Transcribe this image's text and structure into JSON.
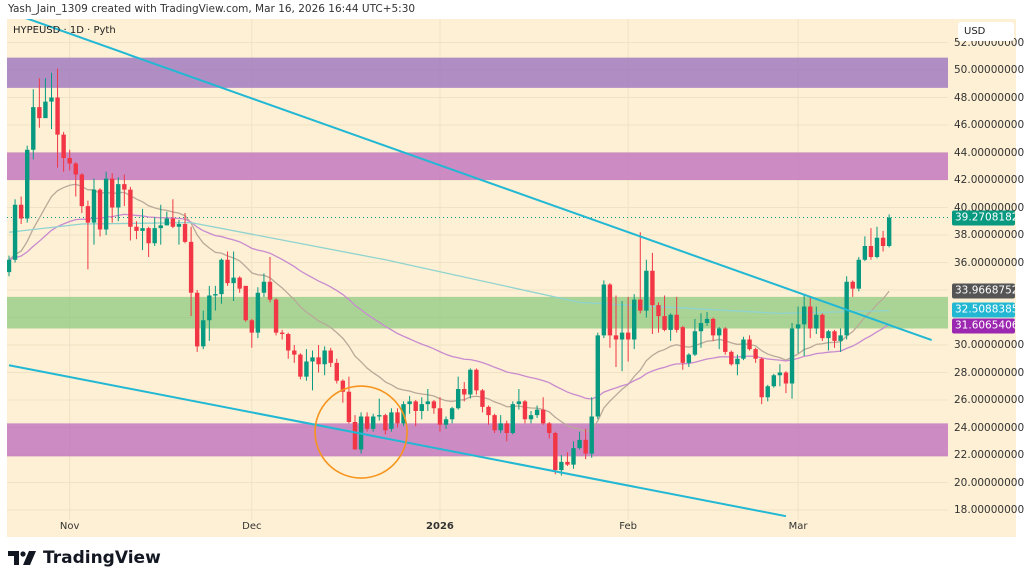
{
  "header": {
    "attribution": "Yash_Jain_1309 created with TradingView.com, Mar 16, 2026 16:44 UTC+5:30"
  },
  "symbol_label": "HYPEUSD · 1D · Pyth",
  "currency": "USD",
  "brand": "TradingView",
  "colors": {
    "background": "#fdf0d4",
    "up": "#089981",
    "down": "#f23645",
    "trendline": "#22b8d4",
    "circle": "#f7941d"
  },
  "chart_data": {
    "type": "candlestick",
    "symbol": "HYPEUSD",
    "interval": "1D",
    "date_range": [
      "2025-10-22",
      "2026-03-16"
    ],
    "ylim": [
      17,
      52.5
    ],
    "y_ticks": [
      "52.00000000",
      "50.00000000",
      "48.00000000",
      "46.00000000",
      "44.00000000",
      "42.00000000",
      "40.00000000",
      "38.00000000",
      "36.00000000",
      "30.00000000",
      "28.00000000",
      "26.00000000",
      "24.00000000",
      "22.00000000",
      "20.00000000",
      "18.00000000"
    ],
    "y_tick_values": [
      52,
      50,
      48,
      46,
      44,
      42,
      40,
      38,
      36,
      30,
      28,
      26,
      24,
      22,
      20,
      18
    ],
    "x_ticks": [
      {
        "label": "Nov",
        "date": "2025-11-01"
      },
      {
        "label": "Dec",
        "date": "2025-12-01"
      },
      {
        "label": "2026",
        "date": "2026-01-01",
        "bold": true
      },
      {
        "label": "Feb",
        "date": "2026-02-01"
      },
      {
        "label": "Mar",
        "date": "2026-03-01"
      }
    ],
    "grid": true,
    "ohlc": [
      [
        35.3,
        36.5,
        35.0,
        36.2
      ],
      [
        36.2,
        40.6,
        36.0,
        40.2
      ],
      [
        40.2,
        40.8,
        38.8,
        39.2
      ],
      [
        39.2,
        44.5,
        38.9,
        44.2
      ],
      [
        44.2,
        48.6,
        43.5,
        47.3
      ],
      [
        47.3,
        49.4,
        45.8,
        46.5
      ],
      [
        46.5,
        49.4,
        46.5,
        47.7
      ],
      [
        47.7,
        49.8,
        45.7,
        48.0
      ],
      [
        48.0,
        50.1,
        42.9,
        45.3
      ],
      [
        45.3,
        45.5,
        42.6,
        43.6
      ],
      [
        43.6,
        44.2,
        42.7,
        43.2
      ],
      [
        43.2,
        43.3,
        40.8,
        42.4
      ],
      [
        42.4,
        42.5,
        39.6,
        40.1
      ],
      [
        40.1,
        40.5,
        35.5,
        38.9
      ],
      [
        38.9,
        42.1,
        37.3,
        41.3
      ],
      [
        41.3,
        41.4,
        37.9,
        38.4
      ],
      [
        38.4,
        42.6,
        38.0,
        42.1
      ],
      [
        42.1,
        42.5,
        38.9,
        40.0
      ],
      [
        40.0,
        42.2,
        39.0,
        41.7
      ],
      [
        41.7,
        42.4,
        40.1,
        41.3
      ],
      [
        41.3,
        41.5,
        37.6,
        38.6
      ],
      [
        38.6,
        39.0,
        37.7,
        38.3
      ],
      [
        38.3,
        39.9,
        36.9,
        38.5
      ],
      [
        38.5,
        38.6,
        36.4,
        37.4
      ],
      [
        37.4,
        39.3,
        37.2,
        38.5
      ],
      [
        38.5,
        40.2,
        37.3,
        38.7
      ],
      [
        38.7,
        39.7,
        38.7,
        39.2
      ],
      [
        39.2,
        40.6,
        38.5,
        38.6
      ],
      [
        38.6,
        39.1,
        37.3,
        38.8
      ],
      [
        38.8,
        39.6,
        37.4,
        37.5
      ],
      [
        37.5,
        38.6,
        32.1,
        33.8
      ],
      [
        33.8,
        34.0,
        29.5,
        29.9
      ],
      [
        29.9,
        32.5,
        29.7,
        31.8
      ],
      [
        31.8,
        34.3,
        30.3,
        33.6
      ],
      [
        33.6,
        34.3,
        32.5,
        33.7
      ],
      [
        33.7,
        36.3,
        33.0,
        36.2
      ],
      [
        36.2,
        36.8,
        34.3,
        34.5
      ],
      [
        34.5,
        36.8,
        33.2,
        34.9
      ],
      [
        34.9,
        35.0,
        33.8,
        34.1
      ],
      [
        34.3,
        34.3,
        31.7,
        31.8
      ],
      [
        31.8,
        31.9,
        29.8,
        30.9
      ],
      [
        30.9,
        34.2,
        30.5,
        33.8
      ],
      [
        33.8,
        35.2,
        33.5,
        34.6
      ],
      [
        34.6,
        36.4,
        33.1,
        33.3
      ],
      [
        33.3,
        33.4,
        30.7,
        30.9
      ],
      [
        30.9,
        31.1,
        30.4,
        30.8
      ],
      [
        30.8,
        30.9,
        29.0,
        29.6
      ],
      [
        29.6,
        30.0,
        28.7,
        29.3
      ],
      [
        29.3,
        29.4,
        27.5,
        27.7
      ],
      [
        27.7,
        29.7,
        27.4,
        28.8
      ],
      [
        28.8,
        29.6,
        26.7,
        29.1
      ],
      [
        29.1,
        30.0,
        28.0,
        28.6
      ],
      [
        28.6,
        29.9,
        27.8,
        29.6
      ],
      [
        29.6,
        29.8,
        28.4,
        28.7
      ],
      [
        28.7,
        29.0,
        27.2,
        27.4
      ],
      [
        27.4,
        27.5,
        25.8,
        26.6
      ],
      [
        26.6,
        27.7,
        24.3,
        24.4
      ],
      [
        24.4,
        24.9,
        22.4,
        22.4
      ],
      [
        22.4,
        25.1,
        22.1,
        24.8
      ],
      [
        24.8,
        25.1,
        23.7,
        23.9
      ],
      [
        23.9,
        25.0,
        23.7,
        24.8
      ],
      [
        24.8,
        26.1,
        24.5,
        24.9
      ],
      [
        24.9,
        25.0,
        23.5,
        23.8
      ],
      [
        23.9,
        25.4,
        23.7,
        25.1
      ],
      [
        25.1,
        25.4,
        24.0,
        24.3
      ],
      [
        24.3,
        25.9,
        24.1,
        25.7
      ],
      [
        25.7,
        26.3,
        25.0,
        25.9
      ],
      [
        25.9,
        26.0,
        24.1,
        25.2
      ],
      [
        25.2,
        26.2,
        24.6,
        25.7
      ],
      [
        25.7,
        26.8,
        25.2,
        25.9
      ],
      [
        25.9,
        26.0,
        25.0,
        25.4
      ],
      [
        25.4,
        26.2,
        23.7,
        24.2
      ],
      [
        24.2,
        24.8,
        23.9,
        24.6
      ],
      [
        24.6,
        25.5,
        24.3,
        25.4
      ],
      [
        25.4,
        27.7,
        25.3,
        26.8
      ],
      [
        26.8,
        27.3,
        25.9,
        26.4
      ],
      [
        26.4,
        28.3,
        26.1,
        28.2
      ],
      [
        28.2,
        28.3,
        26.4,
        26.7
      ],
      [
        26.7,
        26.8,
        25.1,
        25.5
      ],
      [
        25.5,
        25.6,
        24.2,
        24.9
      ],
      [
        24.9,
        25.0,
        23.6,
        23.8
      ],
      [
        23.8,
        24.9,
        23.6,
        24.3
      ],
      [
        24.3,
        24.5,
        23.0,
        23.6
      ],
      [
        23.6,
        25.9,
        23.5,
        25.7
      ],
      [
        25.7,
        26.8,
        25.3,
        25.9
      ],
      [
        25.9,
        26.0,
        24.3,
        24.6
      ],
      [
        24.6,
        25.2,
        24.3,
        24.9
      ],
      [
        24.9,
        25.6,
        24.7,
        25.3
      ],
      [
        25.3,
        26.2,
        24.2,
        24.3
      ],
      [
        24.3,
        24.4,
        23.2,
        23.6
      ],
      [
        23.6,
        23.7,
        20.6,
        20.9
      ],
      [
        20.9,
        22.0,
        20.5,
        21.5
      ],
      [
        21.5,
        22.2,
        21.2,
        21.3
      ],
      [
        21.3,
        23.0,
        21.0,
        22.5
      ],
      [
        22.5,
        23.7,
        22.4,
        23.1
      ],
      [
        23.1,
        23.9,
        21.7,
        22.1
      ],
      [
        22.1,
        26.2,
        21.8,
        24.8
      ],
      [
        24.8,
        30.9,
        24.6,
        30.7
      ],
      [
        30.7,
        34.7,
        30.5,
        34.4
      ],
      [
        34.4,
        34.5,
        29.8,
        30.7
      ],
      [
        30.7,
        33.6,
        28.4,
        30.4
      ],
      [
        30.4,
        33.2,
        28.1,
        30.9
      ],
      [
        30.9,
        33.5,
        28.8,
        30.4
      ],
      [
        30.4,
        33.7,
        29.7,
        33.3
      ],
      [
        33.3,
        38.2,
        32.3,
        32.5
      ],
      [
        32.5,
        36.2,
        32.0,
        35.4
      ],
      [
        35.4,
        36.7,
        30.8,
        32.9
      ],
      [
        32.9,
        33.1,
        30.9,
        32.1
      ],
      [
        32.1,
        33.6,
        31.0,
        31.1
      ],
      [
        31.1,
        32.3,
        30.3,
        32.2
      ],
      [
        32.2,
        33.5,
        30.9,
        31.1
      ],
      [
        31.3,
        31.4,
        28.2,
        28.7
      ],
      [
        28.7,
        29.4,
        28.4,
        29.3
      ],
      [
        29.3,
        31.9,
        29.2,
        31.0
      ],
      [
        31.0,
        32.3,
        29.8,
        31.6
      ],
      [
        31.6,
        32.4,
        31.4,
        31.9
      ],
      [
        31.9,
        32.0,
        30.3,
        30.7
      ],
      [
        30.7,
        31.3,
        29.7,
        31.2
      ],
      [
        31.2,
        31.3,
        29.3,
        29.5
      ],
      [
        29.5,
        29.6,
        28.5,
        28.6
      ],
      [
        28.6,
        29.3,
        27.8,
        29.0
      ],
      [
        29.0,
        30.6,
        28.9,
        30.4
      ],
      [
        30.4,
        30.7,
        29.6,
        29.7
      ],
      [
        29.7,
        29.8,
        28.7,
        29.0
      ],
      [
        29.0,
        29.1,
        25.7,
        26.2
      ],
      [
        26.2,
        27.1,
        25.9,
        27.0
      ],
      [
        27.0,
        27.9,
        26.9,
        27.8
      ],
      [
        27.8,
        28.6,
        27.0,
        28.0
      ],
      [
        28.0,
        28.1,
        26.5,
        27.2
      ],
      [
        27.2,
        31.6,
        26.1,
        31.2
      ],
      [
        31.2,
        32.8,
        29.4,
        31.5
      ],
      [
        31.5,
        33.7,
        29.2,
        32.8
      ],
      [
        32.8,
        33.5,
        30.5,
        31.2
      ],
      [
        31.2,
        32.8,
        30.8,
        32.2
      ],
      [
        32.2,
        32.3,
        30.3,
        30.5
      ],
      [
        30.5,
        31.1,
        29.6,
        31.0
      ],
      [
        31.0,
        31.1,
        29.8,
        30.3
      ],
      [
        30.3,
        31.2,
        29.5,
        30.7
      ],
      [
        30.7,
        35.0,
        30.4,
        34.6
      ],
      [
        34.6,
        34.7,
        33.5,
        34.1
      ],
      [
        34.1,
        36.4,
        33.9,
        36.2
      ],
      [
        36.2,
        37.9,
        36.1,
        37.2
      ],
      [
        37.2,
        38.5,
        36.2,
        36.4
      ],
      [
        36.4,
        38.6,
        36.3,
        37.8
      ],
      [
        37.8,
        38.3,
        36.8,
        37.2
      ],
      [
        37.2,
        39.5,
        37.1,
        39.27
      ]
    ],
    "moving_averages": [
      {
        "kind": "ema",
        "length": 20,
        "color": "#b8a99a",
        "last_value": "33.96687524",
        "label_color": "#555555"
      },
      {
        "kind": "ema",
        "length": 50,
        "color": "#c98ad0",
        "last_value": "31.60654069",
        "label_color": "#9c27b0"
      },
      {
        "kind": "long",
        "color": "#8fd3cf",
        "last_value": "32.50883852",
        "label_color": "#22b8d4",
        "points": [
          [
            "2025-10-22",
            38.2
          ],
          [
            "2025-11-03",
            38.8
          ],
          [
            "2025-11-21",
            38.9
          ],
          [
            "2025-12-23",
            36.2
          ],
          [
            "2026-01-24",
            33.1
          ],
          [
            "2026-02-26",
            32.3
          ],
          [
            "2026-03-16",
            32.5
          ]
        ]
      }
    ],
    "last_price": {
      "value": 39.2708182,
      "label": "39.27081820",
      "color": "#089981"
    },
    "zones": [
      {
        "from": 48.7,
        "to": 50.9,
        "color": "rgba(150,110,190,0.75)"
      },
      {
        "from": 42.0,
        "to": 44.0,
        "color": "rgba(190,110,190,0.78)"
      },
      {
        "from": 31.2,
        "to": 33.5,
        "color": "rgba(120,195,110,0.62)"
      },
      {
        "from": 21.9,
        "to": 24.3,
        "color": "rgba(190,110,190,0.78)"
      }
    ],
    "trendlines": [
      {
        "from": [
          "2025-10-24",
          53.9
        ],
        "to": [
          "2026-03-23",
          30.36
        ]
      },
      {
        "from": [
          "2025-10-22",
          28.53
        ],
        "to": [
          "2026-02-27",
          17.55
        ]
      }
    ],
    "circle_annotation": {
      "center": [
        "2025-12-19",
        23.67
      ]
    }
  }
}
